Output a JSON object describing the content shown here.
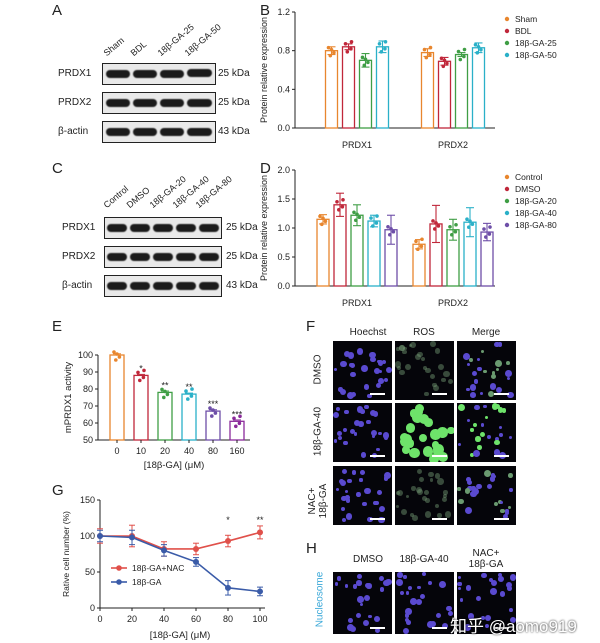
{
  "panels": {
    "A": {
      "letter": "A",
      "lanes": [
        "Sham",
        "BDL",
        "18β-GA-25",
        "18β-GA-50"
      ],
      "rows": [
        {
          "label": "PRDX1",
          "kda": "25 kDa"
        },
        {
          "label": "PRDX2",
          "kda": "25 kDa"
        },
        {
          "label": "β-actin",
          "kda": "43 kDa"
        }
      ]
    },
    "C": {
      "letter": "C",
      "lanes": [
        "Control",
        "DMSO",
        "18β-GA-20",
        "18β-GA-40",
        "18β-GA-80"
      ],
      "rows": [
        {
          "label": "PRDX1",
          "kda": "25 kDa"
        },
        {
          "label": "PRDX2",
          "kda": "25 kDa"
        },
        {
          "label": "β-actin",
          "kda": "43 kDa"
        }
      ]
    },
    "F": {
      "letter": "F",
      "columns": [
        {
          "title": "Hoechst",
          "color": "#3aa8d8"
        },
        {
          "title": "ROS",
          "color": "#3aa845"
        },
        {
          "title": "Merge",
          "color": "#222222"
        }
      ],
      "rows": [
        "DMSO",
        "18β-GA-40",
        "NAC+\n18β-GA"
      ]
    },
    "H": {
      "letter": "H",
      "columns": [
        "DMSO",
        "18β-GA-40",
        "NAC+\n18β-GA"
      ],
      "row_label": "Nucleosome",
      "row_label_color": "#3aa8d8"
    }
  },
  "chart_data": [
    {
      "panel": "B",
      "type": "bar",
      "ylabel": "Protein relative expression",
      "ylim": [
        0.0,
        1.2
      ],
      "yticks": [
        "0.0",
        "0.4",
        "0.8",
        "1.2"
      ],
      "categories": [
        "PRDX1",
        "PRDX2"
      ],
      "legend_position": "right",
      "series": [
        {
          "name": "Sham",
          "color": "#e8862e",
          "values": [
            0.8,
            0.78
          ],
          "errors": [
            0.04,
            0.04
          ]
        },
        {
          "name": "BDL",
          "color": "#c0273a",
          "values": [
            0.84,
            0.69
          ],
          "errors": [
            0.03,
            0.04
          ]
        },
        {
          "name": "18β-GA-25",
          "color": "#3f9e45",
          "values": [
            0.7,
            0.76
          ],
          "errors": [
            0.07,
            0.02
          ]
        },
        {
          "name": "18β-GA-50",
          "color": "#2ab0c8",
          "values": [
            0.84,
            0.83
          ],
          "errors": [
            0.06,
            0.05
          ]
        }
      ]
    },
    {
      "panel": "D",
      "type": "bar",
      "ylabel": "Protein relative expression",
      "ylim": [
        0.0,
        2.0
      ],
      "yticks": [
        "0.0",
        "0.5",
        "1.0",
        "1.5",
        "2.0"
      ],
      "categories": [
        "PRDX1",
        "PRDX2"
      ],
      "legend_position": "right",
      "series": [
        {
          "name": "Control",
          "color": "#e8862e",
          "values": [
            1.15,
            0.72
          ],
          "errors": [
            0.08,
            0.08
          ]
        },
        {
          "name": "DMSO",
          "color": "#c0273a",
          "values": [
            1.4,
            1.07
          ],
          "errors": [
            0.2,
            0.32
          ]
        },
        {
          "name": "18β-GA-20",
          "color": "#3f9e45",
          "values": [
            1.22,
            0.97
          ],
          "errors": [
            0.18,
            0.18
          ]
        },
        {
          "name": "18β-GA-40",
          "color": "#2ab0c8",
          "values": [
            1.12,
            1.1
          ],
          "errors": [
            0.1,
            0.25
          ]
        },
        {
          "name": "18β-GA-80",
          "color": "#6e4fa8",
          "values": [
            0.97,
            0.93
          ],
          "errors": [
            0.25,
            0.15
          ]
        }
      ]
    },
    {
      "panel": "E",
      "type": "bar",
      "ylabel": "mPRDX1 activity",
      "xlabel": "[18β-GA] (μM)",
      "ylim": [
        50,
        100
      ],
      "yticks": [
        "50",
        "60",
        "70",
        "80",
        "90",
        "100"
      ],
      "categories": [
        "0",
        "10",
        "20",
        "40",
        "80",
        "160"
      ],
      "values": [
        100,
        88,
        78,
        77,
        67,
        61
      ],
      "errors": [
        0.7,
        0.6,
        0.8,
        0.6,
        0.8,
        0.8
      ],
      "colors": [
        "#e8862e",
        "#c0273a",
        "#3f9e45",
        "#2ab0c8",
        "#6e4fa8",
        "#8a2a9a"
      ],
      "significance": [
        "",
        "*",
        "**",
        "**",
        "***",
        "***"
      ]
    },
    {
      "panel": "G",
      "type": "line",
      "ylabel": "Rative cell number (%)",
      "xlabel": "[18β-GA] (μM)",
      "ylim": [
        0,
        150
      ],
      "yticks": [
        "0",
        "50",
        "100",
        "150"
      ],
      "xlim": [
        0,
        100
      ],
      "xticks": [
        "0",
        "20",
        "40",
        "60",
        "80",
        "100"
      ],
      "legend_position": "left",
      "series": [
        {
          "name": "18β-GA+NAC",
          "color": "#e0504a",
          "x": [
            0,
            20,
            40,
            60,
            80,
            100
          ],
          "y": [
            100,
            100,
            82,
            82,
            93,
            105
          ],
          "errors": [
            10,
            15,
            10,
            8,
            8,
            9
          ]
        },
        {
          "name": "18β-GA",
          "color": "#3a5ba8",
          "x": [
            0,
            20,
            40,
            60,
            80,
            100
          ],
          "y": [
            100,
            98,
            80,
            64,
            28,
            23
          ],
          "errors": [
            8,
            10,
            8,
            6,
            10,
            6
          ]
        }
      ],
      "significance": [
        {
          "x": 80,
          "label": "*"
        },
        {
          "x": 100,
          "label": "**"
        }
      ]
    }
  ],
  "watermark": "知乎 @aomo919"
}
